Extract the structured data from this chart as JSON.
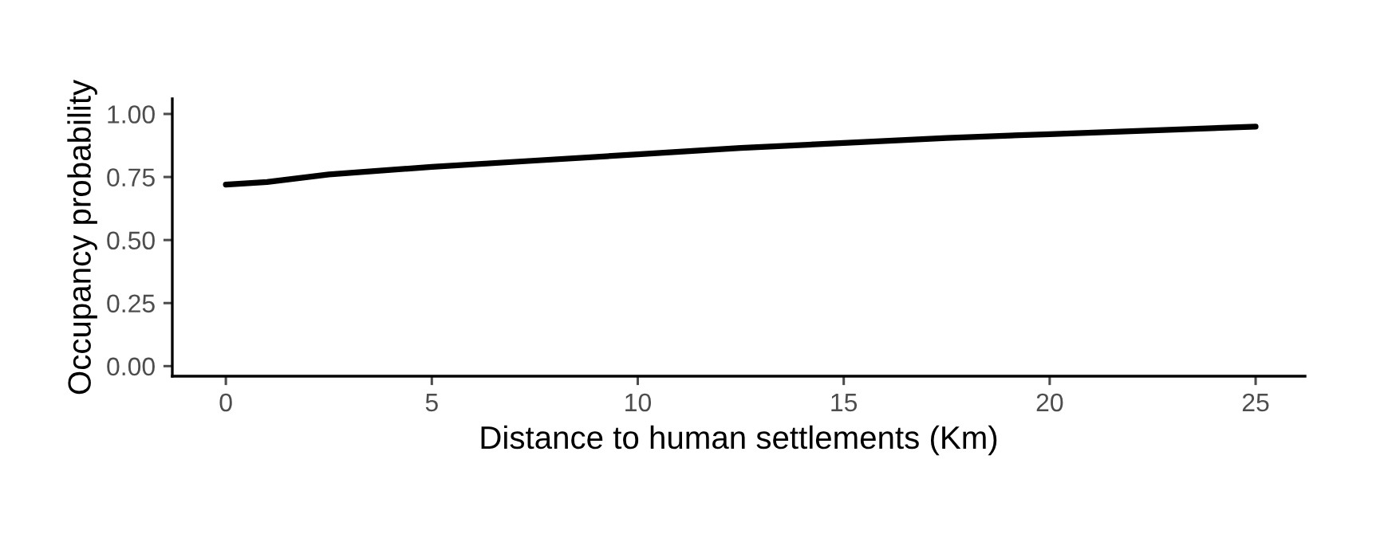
{
  "chart_data": {
    "type": "line",
    "xlabel": "Distance to human settlements (Km)",
    "ylabel": "Occupancy probability",
    "x": [
      0,
      1,
      2.5,
      5,
      7.5,
      10,
      12.5,
      15,
      17.5,
      20,
      22.5,
      25
    ],
    "series": [
      {
        "color": "#000000",
        "values": [
          0.72,
          0.73,
          0.76,
          0.79,
          0.815,
          0.84,
          0.865,
          0.885,
          0.905,
          0.92,
          0.935,
          0.95
        ]
      }
    ],
    "xlim": [
      -1.3,
      26.2
    ],
    "ylim": [
      -0.04,
      1.06
    ],
    "xticks": [
      0,
      5,
      10,
      15,
      20,
      25
    ],
    "yticks": [
      {
        "value": 0,
        "label": "0.00"
      },
      {
        "value": 0.25,
        "label": "0.25"
      },
      {
        "value": 0.5,
        "label": "0.50"
      },
      {
        "value": 0.75,
        "label": "0.75"
      },
      {
        "value": 1,
        "label": "1.00"
      }
    ],
    "grid": false,
    "legend": false,
    "line_style": "solid",
    "marker": "none"
  }
}
